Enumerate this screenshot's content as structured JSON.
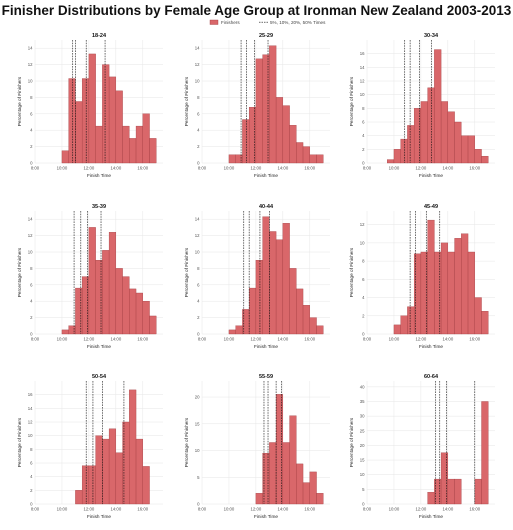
{
  "title": "Finisher Distributions by Female Age Group at Ironman New Zealand 2003-2013",
  "legend": {
    "bar_label": "Finishers",
    "line_label": "5%, 10%, 20%, 50% Times"
  },
  "colors": {
    "bar_fill": "#d9676a",
    "bar_stroke": "#a03a3e",
    "grid": "#e6e6e6",
    "vline": "#111111"
  },
  "chart_data": [
    {
      "type": "bar",
      "panel": "18-24",
      "xlabel": "Finish Time",
      "ylabel": "Percentage of Finishers",
      "x_range_hours": [
        8,
        17.5
      ],
      "x_ticks": [
        "8:00",
        "10:00",
        "12:00",
        "14:00",
        "16:00"
      ],
      "ylim": [
        0,
        15
      ],
      "y_ticks": [
        0,
        2,
        4,
        6,
        8,
        10,
        12,
        14
      ],
      "bin_width_hours": 0.5,
      "bins_start_hours": [
        10,
        10.5,
        11,
        11.5,
        12,
        12.5,
        13,
        13.5,
        14,
        14.5,
        15,
        15.5,
        16,
        16.5
      ],
      "values": [
        1.5,
        10.3,
        7.5,
        10.3,
        13.3,
        4.5,
        12.0,
        10.5,
        8.8,
        4.5,
        3.0,
        4.5,
        6.0,
        3.0
      ],
      "percentile_lines_hours": [
        10.8,
        11.0,
        11.8,
        13.2
      ]
    },
    {
      "type": "bar",
      "panel": "25-29",
      "xlabel": "Finish Time",
      "ylabel": "Percentage of Finishers",
      "x_range_hours": [
        8,
        17.5
      ],
      "x_ticks": [
        "8:00",
        "10:00",
        "12:00",
        "14:00",
        "16:00"
      ],
      "ylim": [
        0,
        15
      ],
      "y_ticks": [
        0,
        2,
        4,
        6,
        8,
        10,
        12,
        14
      ],
      "bin_width_hours": 0.5,
      "bins_start_hours": [
        10,
        10.5,
        11,
        11.5,
        12,
        12.5,
        13,
        13.5,
        14,
        14.5,
        15,
        15.5,
        16,
        16.5
      ],
      "values": [
        1.0,
        1.0,
        5.3,
        6.8,
        12.7,
        13.2,
        14.3,
        8.0,
        7.0,
        4.6,
        2.5,
        2.0,
        1.0,
        1.0
      ],
      "percentile_lines_hours": [
        10.9,
        11.3,
        11.9,
        12.9
      ]
    },
    {
      "type": "bar",
      "panel": "30-34",
      "xlabel": "Finish Time",
      "ylabel": "Percentage of Finishers",
      "x_range_hours": [
        8,
        17.5
      ],
      "x_ticks": [
        "8:00",
        "10:00",
        "12:00",
        "14:00",
        "16:00"
      ],
      "ylim": [
        0,
        18
      ],
      "y_ticks": [
        0,
        2,
        4,
        6,
        8,
        10,
        12,
        14,
        16
      ],
      "bin_width_hours": 0.5,
      "bins_start_hours": [
        9.5,
        10,
        10.5,
        11,
        11.5,
        12,
        12.5,
        13,
        13.5,
        14,
        14.5,
        15,
        15.5,
        16,
        16.5
      ],
      "values": [
        0.5,
        2.0,
        3.5,
        5.5,
        8.0,
        9.0,
        11.0,
        16.6,
        9.0,
        7.5,
        6.0,
        4.0,
        4.0,
        2.0,
        1.0
      ],
      "percentile_lines_hours": [
        10.8,
        11.2,
        11.9,
        12.8
      ]
    },
    {
      "type": "bar",
      "panel": "35-39",
      "xlabel": "Finish Time",
      "ylabel": "Percentage of Finishers",
      "x_range_hours": [
        8,
        17.5
      ],
      "x_ticks": [
        "8:00",
        "10:00",
        "12:00",
        "14:00",
        "16:00"
      ],
      "ylim": [
        0,
        15
      ],
      "y_ticks": [
        0,
        2,
        4,
        6,
        8,
        10,
        12,
        14
      ],
      "bin_width_hours": 0.5,
      "bins_start_hours": [
        10,
        10.5,
        11,
        11.5,
        12,
        12.5,
        13,
        13.5,
        14,
        14.5,
        15,
        15.5,
        16,
        16.5
      ],
      "values": [
        0.5,
        1.0,
        5.6,
        7.0,
        13.0,
        9.0,
        10.2,
        12.4,
        8.0,
        7.0,
        5.5,
        5.0,
        4.0,
        2.2
      ],
      "percentile_lines_hours": [
        10.9,
        11.4,
        11.9,
        12.9
      ]
    },
    {
      "type": "bar",
      "panel": "40-44",
      "xlabel": "Finish Time",
      "ylabel": "Percentage of Finishers",
      "x_range_hours": [
        8,
        17.5
      ],
      "x_ticks": [
        "8:00",
        "10:00",
        "12:00",
        "14:00",
        "16:00"
      ],
      "ylim": [
        0,
        15
      ],
      "y_ticks": [
        0,
        2,
        4,
        6,
        8,
        10,
        12,
        14
      ],
      "bin_width_hours": 0.5,
      "bins_start_hours": [
        10,
        10.5,
        11,
        11.5,
        12,
        12.5,
        13,
        13.5,
        14,
        14.5,
        15,
        15.5,
        16,
        16.5
      ],
      "values": [
        0.5,
        1.0,
        3.0,
        5.6,
        9.0,
        14.3,
        12.5,
        11.5,
        13.5,
        8.0,
        5.5,
        3.5,
        2.0,
        1.0
      ],
      "percentile_lines_hours": [
        11.1,
        11.5,
        12.3,
        13.0
      ]
    },
    {
      "type": "bar",
      "panel": "45-49",
      "xlabel": "Finish Time",
      "ylabel": "Percentage of Finishers",
      "x_range_hours": [
        8,
        17.5
      ],
      "x_ticks": [
        "8:00",
        "10:00",
        "12:00",
        "14:00",
        "16:00"
      ],
      "ylim": [
        0,
        13.5
      ],
      "y_ticks": [
        0,
        2,
        4,
        6,
        8,
        10,
        12
      ],
      "bin_width_hours": 0.5,
      "bins_start_hours": [
        10,
        10.5,
        11,
        11.5,
        12,
        12.5,
        13,
        13.5,
        14,
        14.5,
        15,
        15.5,
        16,
        16.5
      ],
      "values": [
        1.0,
        2.0,
        3.0,
        8.8,
        9.0,
        12.5,
        9.0,
        10.0,
        9.0,
        10.5,
        11.0,
        9.0,
        4.0,
        2.5
      ],
      "percentile_lines_hours": [
        11.2,
        11.6,
        12.4,
        13.4
      ]
    },
    {
      "type": "bar",
      "panel": "50-54",
      "xlabel": "Finish Time",
      "ylabel": "Percentage of Finishers",
      "x_range_hours": [
        8,
        17.5
      ],
      "x_ticks": [
        "8:00",
        "10:00",
        "12:00",
        "14:00",
        "16:00"
      ],
      "ylim": [
        0,
        18
      ],
      "y_ticks": [
        0,
        2,
        4,
        6,
        8,
        10,
        12,
        14,
        16
      ],
      "bin_width_hours": 0.5,
      "bins_start_hours": [
        11,
        11.5,
        12,
        12.5,
        13,
        13.5,
        14,
        14.5,
        15,
        15.5,
        16
      ],
      "values": [
        2.0,
        5.6,
        5.6,
        10.0,
        9.5,
        11.0,
        7.5,
        12.0,
        16.7,
        9.5,
        5.5
      ],
      "percentile_lines_hours": [
        11.8,
        12.3,
        13.0,
        14.6
      ]
    },
    {
      "type": "bar",
      "panel": "55-59",
      "xlabel": "Finish Time",
      "ylabel": "Percentage of Finishers",
      "x_range_hours": [
        8,
        17.5
      ],
      "x_ticks": [
        "8:00",
        "10:00",
        "12:00",
        "14:00",
        "16:00"
      ],
      "ylim": [
        0,
        23
      ],
      "y_ticks": [
        0,
        5,
        10,
        15,
        20
      ],
      "bin_width_hours": 0.5,
      "bins_start_hours": [
        12,
        12.5,
        13,
        13.5,
        14,
        14.5,
        15,
        15.5,
        16,
        16.5
      ],
      "values": [
        2.0,
        9.5,
        11.5,
        20.5,
        11.5,
        16.5,
        7.5,
        4.0,
        6.0,
        2.0
      ],
      "percentile_lines_hours": [
        12.6,
        12.9,
        13.5,
        13.9
      ]
    },
    {
      "type": "bar",
      "panel": "60-64",
      "xlabel": "Finish Time",
      "ylabel": "Percentage of Finishers",
      "x_range_hours": [
        8,
        17.5
      ],
      "x_ticks": [
        "8:00",
        "10:00",
        "12:00",
        "14:00",
        "16:00"
      ],
      "ylim": [
        0,
        42
      ],
      "y_ticks": [
        0,
        5,
        10,
        15,
        20,
        25,
        30,
        35,
        40
      ],
      "bin_width_hours": 0.5,
      "bins_start_hours": [
        12.5,
        13,
        13.5,
        14,
        14.5,
        15,
        15.5,
        16,
        16.5
      ],
      "values": [
        4.0,
        8.5,
        17.5,
        8.5,
        8.5,
        0,
        0,
        8.5,
        35.0
      ],
      "percentile_lines_hours": [
        13.1,
        13.4,
        13.9,
        16.0
      ]
    }
  ]
}
